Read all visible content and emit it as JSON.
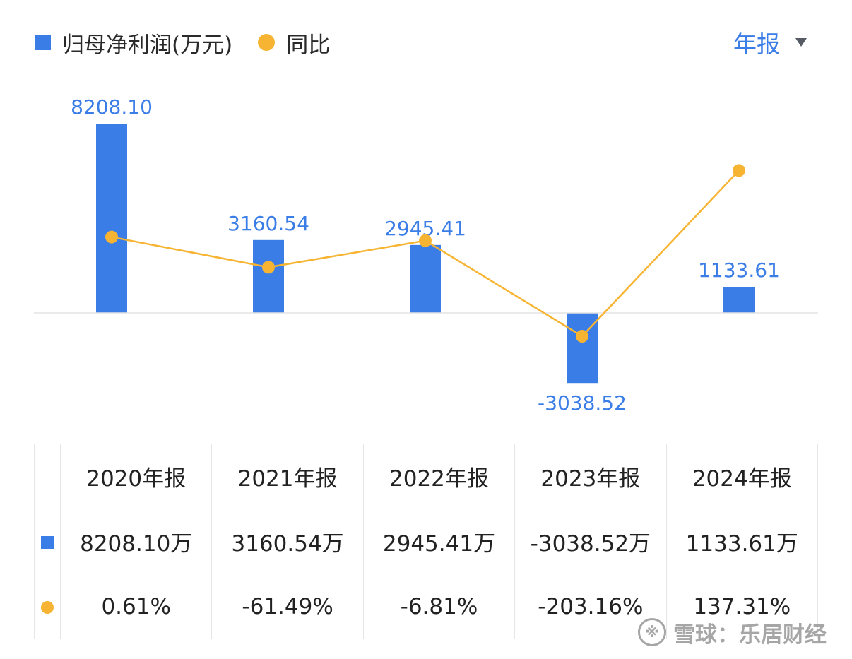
{
  "legend": {
    "bar_label": "归母净利润(万元)",
    "line_label": "同比"
  },
  "period_selector": {
    "label": "年报"
  },
  "colors": {
    "bar": "#3a7de6",
    "line": "#f7b432",
    "positive": "#dd3c3c",
    "negative": "#1f9a62"
  },
  "chart_data": {
    "type": "bar",
    "categories": [
      "2020年报",
      "2021年报",
      "2022年报",
      "2023年报",
      "2024年报"
    ],
    "series": [
      {
        "name": "归母净利润(万元)",
        "type": "bar",
        "values": [
          8208.1,
          3160.54,
          2945.41,
          -3038.52,
          1133.61
        ]
      },
      {
        "name": "同比",
        "type": "line",
        "values": [
          0.61,
          -61.49,
          -6.81,
          -203.16,
          137.31
        ]
      }
    ],
    "data_labels": [
      "8208.10",
      "3160.54",
      "2945.41",
      "-3038.52",
      "1133.61"
    ]
  },
  "table": {
    "headers": [
      "2020年报",
      "2021年报",
      "2022年报",
      "2023年报",
      "2024年报"
    ],
    "profit_row": [
      "8208.10万",
      "3160.54万",
      "2945.41万",
      "-3038.52万",
      "1133.61万"
    ],
    "yoy_row": [
      "0.61%",
      "-61.49%",
      "-6.81%",
      "-203.16%",
      "137.31%"
    ]
  },
  "watermark": {
    "text": "雪球：乐居财经"
  }
}
